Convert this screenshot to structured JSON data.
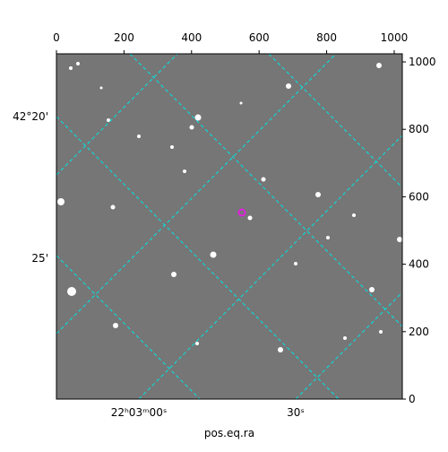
{
  "chart_data": {
    "type": "image",
    "xlabel": "pos.eq.ra",
    "xlim": [
      0,
      1024
    ],
    "xticks": [
      0,
      200,
      400,
      600,
      800,
      1000
    ],
    "ylim": [
      0,
      1024
    ],
    "yticks": [
      0,
      200,
      400,
      600,
      800,
      1000
    ],
    "ra_tick_labels": [
      "22ʰ03ᵐ00ˢ",
      "30ˢ"
    ],
    "dec_tick_labels": [
      "42°20'",
      "25'"
    ],
    "grid_color": "#00e5e5"
  }
}
